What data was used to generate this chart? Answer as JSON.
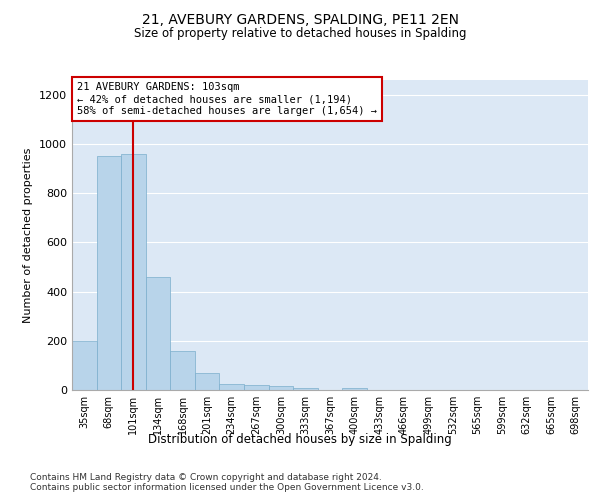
{
  "title": "21, AVEBURY GARDENS, SPALDING, PE11 2EN",
  "subtitle": "Size of property relative to detached houses in Spalding",
  "xlabel": "Distribution of detached houses by size in Spalding",
  "ylabel": "Number of detached properties",
  "categories": [
    "35sqm",
    "68sqm",
    "101sqm",
    "134sqm",
    "168sqm",
    "201sqm",
    "234sqm",
    "267sqm",
    "300sqm",
    "333sqm",
    "367sqm",
    "400sqm",
    "433sqm",
    "466sqm",
    "499sqm",
    "532sqm",
    "565sqm",
    "599sqm",
    "632sqm",
    "665sqm",
    "698sqm"
  ],
  "values": [
    200,
    950,
    960,
    460,
    160,
    70,
    25,
    20,
    17,
    10,
    0,
    10,
    0,
    0,
    0,
    0,
    0,
    0,
    0,
    0,
    0
  ],
  "bar_color": "#b8d4ea",
  "bar_edge_color": "#7aaecc",
  "vline_x": 2,
  "vline_color": "#cc0000",
  "annotation_text": "21 AVEBURY GARDENS: 103sqm\n← 42% of detached houses are smaller (1,194)\n58% of semi-detached houses are larger (1,654) →",
  "annotation_box_color": "#ffffff",
  "annotation_box_edge": "#cc0000",
  "ylim": [
    0,
    1260
  ],
  "yticks": [
    0,
    200,
    400,
    600,
    800,
    1000,
    1200
  ],
  "background_color": "#dce8f5",
  "footer_line1": "Contains HM Land Registry data © Crown copyright and database right 2024.",
  "footer_line2": "Contains public sector information licensed under the Open Government Licence v3.0."
}
